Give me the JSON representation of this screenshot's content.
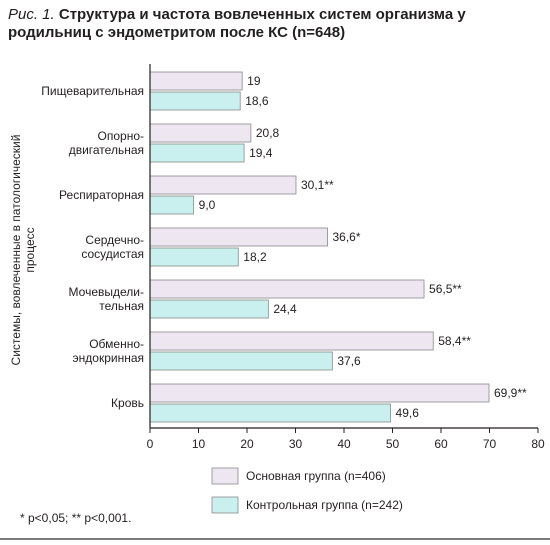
{
  "title": {
    "fig_label": "Рис. 1.",
    "text": " Структура и частота вовлеченных систем организма у родильниц с эндометритом после КС (n=648)"
  },
  "footnote": "* p<0,05; ** p<0,001.",
  "colors": {
    "main_fill": "#eee6f1",
    "control_fill": "#c9f0ef",
    "bar_stroke": "#8a8a8a"
  },
  "chart_data": {
    "type": "bar",
    "orientation": "horizontal",
    "ylabel": "Системы, вовлеченные в патологический процесс",
    "categories": [
      [
        "Пищеварительная"
      ],
      [
        "Опорно-",
        "двигательная"
      ],
      [
        "Респираторная"
      ],
      [
        "Сердечно-",
        "сосудистая"
      ],
      [
        "Мочевыдели-",
        "тельная"
      ],
      [
        "Обменно-",
        "эндокринная"
      ],
      [
        "Кровь"
      ]
    ],
    "series": [
      {
        "name": "Основная группа (n=406)",
        "values": [
          19,
          20.8,
          30.1,
          36.6,
          56.5,
          58.4,
          69.9
        ],
        "labels": [
          "19",
          "20,8",
          "30,1**",
          "36,6*",
          "56,5**",
          "58,4**",
          "69,9**"
        ]
      },
      {
        "name": "Контрольная группа (n=242)",
        "values": [
          18.6,
          19.4,
          9.0,
          18.2,
          24.4,
          37.6,
          49.6
        ],
        "labels": [
          "18,6",
          "19,4",
          "9,0",
          "18,2",
          "24,4",
          "37,6",
          "49,6"
        ]
      }
    ],
    "xlim": [
      0,
      80
    ],
    "xticks": [
      "0",
      "10",
      "20",
      "30",
      "40",
      "50",
      "60",
      "70",
      "80"
    ],
    "grid": false,
    "legend_position": "bottom"
  }
}
